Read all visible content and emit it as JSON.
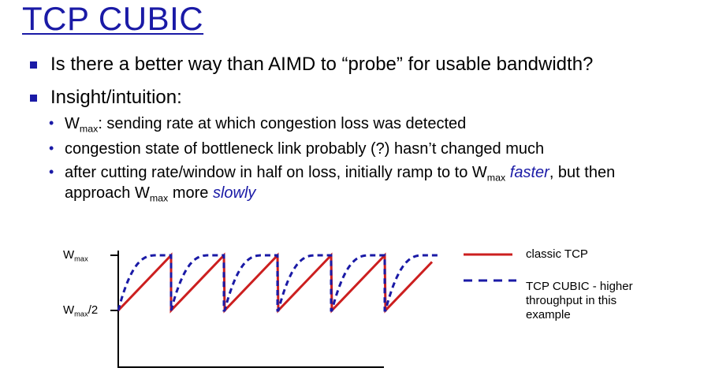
{
  "title": "TCP CUBIC",
  "bullets": [
    {
      "text": "Is there a better way than AIMD to “probe” for usable bandwidth?"
    },
    {
      "text": "Insight/intuition:"
    }
  ],
  "sub_bullets": {
    "b1": {
      "w": "W",
      "sub": "max",
      "rest": ": sending rate at which congestion loss was detected"
    },
    "b2": {
      "text": "congestion state of bottleneck link probably (?) hasn’t changed much"
    },
    "b3": {
      "part1": "after cutting rate/window in half on loss, initially ramp to to W",
      "sub1": "max",
      "em1": "faster",
      "part2": ", but then",
      "line2_part1": "approach W",
      "sub2": "max",
      "line2_part2": " more ",
      "em2": "slowly"
    }
  },
  "chart": {
    "y_label_top": {
      "w": "W",
      "sub": "max"
    },
    "y_label_mid": {
      "w": "W",
      "sub": "max",
      "rest": "/2"
    },
    "legend": [
      {
        "label": "classic TCP",
        "color": "#cc1f1f",
        "style": "solid"
      },
      {
        "label": "TCP CUBIC - higher throughput in this example",
        "color": "#1a1aa6",
        "style": "dashed"
      }
    ],
    "legend_line2a": "throughput in this",
    "legend_line2b": "example",
    "legend_label2a": "TCP CUBIC - higher"
  }
}
